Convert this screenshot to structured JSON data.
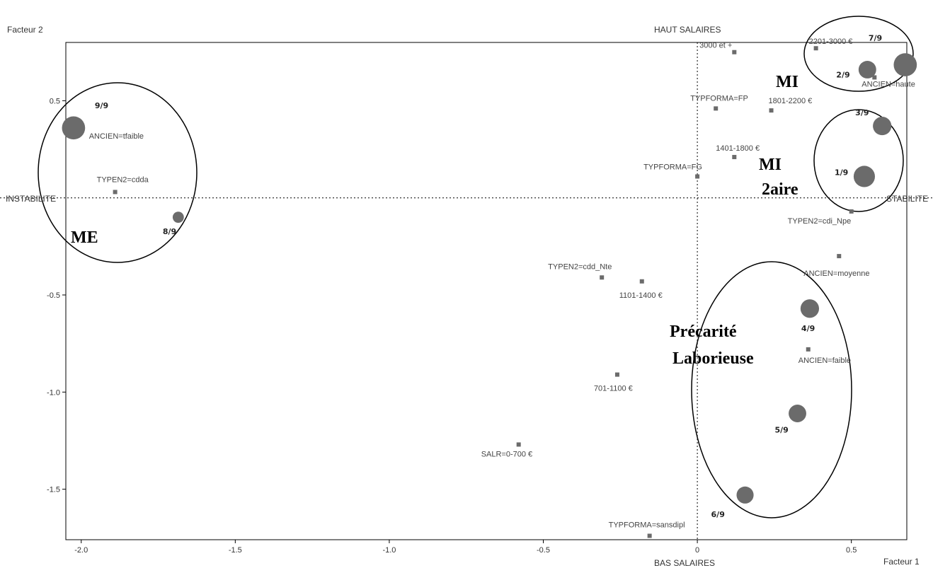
{
  "chart_data": {
    "type": "scatter",
    "title": "",
    "xlabel": "Facteur 1",
    "ylabel": "Facteur 2",
    "xlim": [
      -2.05,
      0.68
    ],
    "ylim": [
      -1.76,
      0.8
    ],
    "x_ticks": [
      {
        "value": -2.0,
        "label": "-2.0"
      },
      {
        "value": -1.5,
        "label": "-1.5"
      },
      {
        "value": -1.0,
        "label": "-1.0"
      },
      {
        "value": -0.5,
        "label": "-0.5"
      },
      {
        "value": 0,
        "label": "0"
      },
      {
        "value": 0.5,
        "label": "0.5"
      }
    ],
    "y_ticks": [
      {
        "value": 0.5,
        "label": "0.5"
      },
      {
        "value": -0.5,
        "label": "-0.5"
      },
      {
        "value": -1.0,
        "label": "-1.0"
      },
      {
        "value": -1.5,
        "label": "-1.5"
      }
    ],
    "pole_labels": {
      "top": "HAUT SALAIRES",
      "bottom": "BAS SALAIRES",
      "left": "INSTABILITE",
      "right": "STABILITE"
    },
    "modalities": [
      {
        "label": "3000 et +",
        "x": 0.12,
        "y": 0.75
      },
      {
        "label": "2201-3000 €",
        "x": 0.385,
        "y": 0.77
      },
      {
        "label": "ANCIEN=haute",
        "x": 0.575,
        "y": 0.62
      },
      {
        "label": "TYPFORMA=FP",
        "x": 0.06,
        "y": 0.46
      },
      {
        "label": "1801-2200 €",
        "x": 0.24,
        "y": 0.45
      },
      {
        "label": "1401-1800 €",
        "x": 0.12,
        "y": 0.21
      },
      {
        "label": "TYPFORMA=FG",
        "x": 0.0,
        "y": 0.11
      },
      {
        "label": "ANCIEN=tfaible",
        "x": -2.03,
        "y": 0.32
      },
      {
        "label": "TYPEN2=cdda",
        "x": -1.89,
        "y": 0.03
      },
      {
        "label": "TYPEN2=cdi_Npe",
        "x": 0.5,
        "y": -0.07
      },
      {
        "label": "ANCIEN=moyenne",
        "x": 0.46,
        "y": -0.3
      },
      {
        "label": "TYPEN2=cdd_Nte",
        "x": -0.31,
        "y": -0.41
      },
      {
        "label": "1101-1400 €",
        "x": -0.18,
        "y": -0.43
      },
      {
        "label": "ANCIEN=faible",
        "x": 0.36,
        "y": -0.78
      },
      {
        "label": "701-1100 €",
        "x": -0.26,
        "y": -0.91
      },
      {
        "label": "SALR=0-700 €",
        "x": -0.58,
        "y": -1.27
      },
      {
        "label": "TYPFORMA=sansdipl",
        "x": -0.155,
        "y": -1.74
      }
    ],
    "classes": [
      {
        "label": "7/9",
        "x": 0.675,
        "y": 0.685,
        "weight": 0.95
      },
      {
        "label": "2/9",
        "x": 0.552,
        "y": 0.66,
        "weight": 0.65
      },
      {
        "label": "3/9",
        "x": 0.6,
        "y": 0.37,
        "weight": 0.7
      },
      {
        "label": "1/9",
        "x": 0.542,
        "y": 0.11,
        "weight": 0.85
      },
      {
        "label": "9/9",
        "x": -2.025,
        "y": 0.36,
        "weight": 0.95
      },
      {
        "label": "8/9",
        "x": -1.685,
        "y": -0.1,
        "weight": 0.3
      },
      {
        "label": "4/9",
        "x": 0.365,
        "y": -0.57,
        "weight": 0.7
      },
      {
        "label": "5/9",
        "x": 0.325,
        "y": -1.11,
        "weight": 0.65
      },
      {
        "label": "6/9",
        "x": 0.155,
        "y": -1.53,
        "weight": 0.62
      }
    ],
    "groups": [
      {
        "label": "ME",
        "members": [
          "9/9",
          "8/9"
        ]
      },
      {
        "label": "MI",
        "members": [
          "7/9",
          "2/9"
        ]
      },
      {
        "label": "MI",
        "label2": "2aire",
        "members": [
          "3/9",
          "1/9"
        ]
      },
      {
        "label": "Précarité",
        "label2": "Laborieuse",
        "members": [
          "4/9",
          "5/9",
          "6/9"
        ]
      }
    ],
    "grid": false,
    "reference_lines": [
      {
        "axis": "x",
        "value": 0
      },
      {
        "axis": "y",
        "value": 0
      }
    ]
  },
  "colors": {
    "axis": "#000000",
    "marker": "#6b6b6b",
    "text": "#444444",
    "ellipse": "#000000"
  }
}
